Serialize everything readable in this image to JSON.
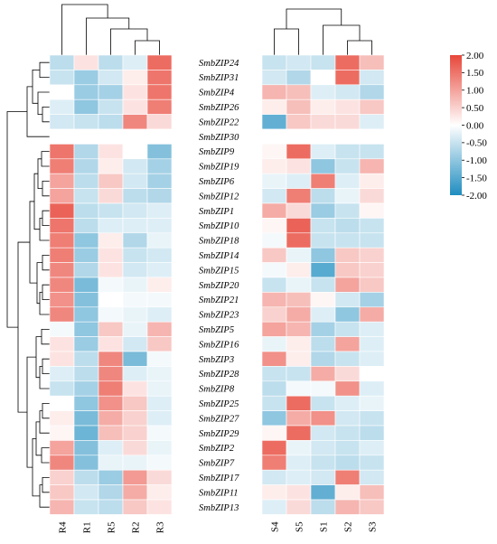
{
  "chart_data": {
    "type": "heatmap",
    "title": "",
    "rows": [
      "SmbZIP24",
      "SmbZIP31",
      "SmbZIP4",
      "SmbZIP26",
      "SmbZIP22",
      "SmbZIP30",
      "SmbZIP9",
      "SmbZIP19",
      "SmbZIP6",
      "SmbZIP12",
      "SmbZIP1",
      "SmbZIP10",
      "SmbZIP18",
      "SmbZIP14",
      "SmbZIP15",
      "SmbZIP20",
      "SmbZIP21",
      "SmbZIP23",
      "SmbZIP5",
      "SmbZIP16",
      "SmbZIP3",
      "SmbZIP28",
      "SmbZIP8",
      "SmbZIP25",
      "SmbZIP27",
      "SmbZIP29",
      "SmbZIP2",
      "SmbZIP7",
      "SmbZIP17",
      "SmbZIP11",
      "SmbZIP13"
    ],
    "panels": [
      {
        "columns": [
          "R4",
          "R1",
          "R5",
          "R2",
          "R3"
        ],
        "values": [
          [
            -0.6,
            0.3,
            -0.6,
            -0.3,
            1.6
          ],
          [
            -0.5,
            -0.9,
            -0.4,
            0.2,
            1.5
          ],
          [
            0.0,
            -0.9,
            -0.8,
            0.3,
            1.5
          ],
          [
            -0.3,
            -1.0,
            -0.5,
            0.3,
            1.4
          ],
          [
            -0.4,
            -0.5,
            -0.6,
            1.3,
            0.4
          ],
          [
            0.0,
            0.0,
            0.0,
            0.0,
            0.0
          ],
          [
            1.5,
            -0.7,
            0.3,
            0.0,
            -1.1
          ],
          [
            1.4,
            -0.7,
            0.2,
            -0.4,
            -0.8
          ],
          [
            1.0,
            -0.6,
            0.6,
            -0.4,
            -0.8
          ],
          [
            1.0,
            -0.5,
            0.4,
            -0.6,
            -0.7
          ],
          [
            1.7,
            -0.6,
            -0.5,
            -0.4,
            -0.3
          ],
          [
            1.5,
            -0.6,
            -0.3,
            -0.3,
            -0.3
          ],
          [
            1.4,
            -1.0,
            0.2,
            -0.7,
            -0.2
          ],
          [
            1.4,
            -0.9,
            0.3,
            -0.5,
            -0.4
          ],
          [
            1.3,
            -0.7,
            0.3,
            -0.4,
            -0.3
          ],
          [
            1.3,
            -1.2,
            -0.1,
            -0.2,
            0.2
          ],
          [
            1.2,
            -1.1,
            0.0,
            -0.1,
            -0.1
          ],
          [
            1.3,
            -1.0,
            -0.1,
            -0.2,
            -0.3
          ],
          [
            -0.1,
            -1.0,
            0.6,
            -0.2,
            0.8
          ],
          [
            0.3,
            -0.9,
            0.3,
            -0.4,
            0.6
          ],
          [
            0.3,
            -0.6,
            1.3,
            -1.2,
            -0.1
          ],
          [
            -0.3,
            -0.6,
            1.3,
            -0.3,
            -0.2
          ],
          [
            -0.5,
            -0.8,
            1.4,
            0.3,
            -0.2
          ],
          [
            0.0,
            -1.0,
            1.2,
            0.6,
            -0.3
          ],
          [
            0.2,
            -1.2,
            0.9,
            0.5,
            -0.3
          ],
          [
            0.1,
            -1.3,
            0.7,
            0.5,
            -0.1
          ],
          [
            1.0,
            -1.1,
            -0.3,
            0.4,
            -0.2
          ],
          [
            1.3,
            -1.1,
            -0.2,
            -0.2,
            -0.1
          ],
          [
            0.5,
            -0.6,
            -0.9,
            1.1,
            0.4
          ],
          [
            0.6,
            -0.4,
            -0.7,
            0.9,
            0.2
          ],
          [
            0.8,
            -0.5,
            -0.6,
            0.6,
            0.3
          ]
        ]
      },
      {
        "columns": [
          "S4",
          "S5",
          "S1",
          "S2",
          "S3"
        ],
        "values": [
          [
            -0.5,
            -0.4,
            -0.5,
            1.6,
            0.7
          ],
          [
            -0.4,
            -0.7,
            0.0,
            1.6,
            -0.4
          ],
          [
            0.8,
            0.7,
            -0.3,
            -0.4,
            -0.7
          ],
          [
            0.2,
            0.7,
            0.2,
            0.3,
            0.6
          ],
          [
            -1.4,
            0.6,
            0.4,
            0.4,
            -0.3
          ],
          [
            0.0,
            0.0,
            0.0,
            0.0,
            0.0
          ],
          [
            0.1,
            1.6,
            -0.3,
            -0.5,
            -0.5
          ],
          [
            0.2,
            0.3,
            -1.0,
            -0.5,
            0.8
          ],
          [
            -0.2,
            -0.3,
            1.4,
            -0.3,
            0.2
          ],
          [
            -0.4,
            1.4,
            -0.6,
            -0.2,
            0.4
          ],
          [
            0.9,
            0.4,
            -0.9,
            -0.5,
            0.1
          ],
          [
            0.1,
            1.7,
            -0.5,
            -0.6,
            -0.5
          ],
          [
            -0.1,
            1.6,
            -0.5,
            -0.5,
            -0.5
          ],
          [
            0.6,
            -0.2,
            -1.0,
            0.6,
            0.5
          ],
          [
            -0.1,
            0.2,
            -1.5,
            0.6,
            0.5
          ],
          [
            -0.5,
            -0.2,
            -0.5,
            1.0,
            0.6
          ],
          [
            0.8,
            0.7,
            0.1,
            -0.4,
            -0.8
          ],
          [
            0.5,
            0.9,
            -0.3,
            -1.0,
            0.9
          ],
          [
            1.0,
            0.8,
            -0.8,
            -0.5,
            -0.3
          ],
          [
            -0.2,
            0.2,
            -0.6,
            1.0,
            -0.3
          ],
          [
            1.2,
            0.2,
            -0.7,
            -0.5,
            -0.3
          ],
          [
            -0.5,
            -0.5,
            0.9,
            0.4,
            0.0
          ],
          [
            -0.6,
            -0.1,
            -0.1,
            1.2,
            -0.3
          ],
          [
            -0.5,
            1.6,
            -0.5,
            -0.3,
            -0.2
          ],
          [
            -1.0,
            0.9,
            1.2,
            -0.4,
            -0.5
          ],
          [
            0.1,
            1.6,
            -0.4,
            -0.5,
            -0.6
          ],
          [
            1.6,
            -0.2,
            -0.4,
            -0.5,
            -0.3
          ],
          [
            1.4,
            -0.3,
            -0.5,
            -0.6,
            -0.5
          ],
          [
            -0.4,
            -0.3,
            -0.4,
            1.4,
            -0.4
          ],
          [
            0.2,
            0.3,
            -1.4,
            0.2,
            0.7
          ],
          [
            -0.3,
            0.4,
            -0.6,
            0.8,
            0.6
          ]
        ]
      }
    ],
    "colorbar": {
      "range": [
        -2.0,
        2.0
      ],
      "ticks": [
        "2.00",
        "1.50",
        "1.00",
        "0.50",
        "0.00",
        "-0.50",
        "-1.00",
        "-1.50",
        "-2.00"
      ],
      "low_color": "#1f8dc0",
      "mid_color": "#ffffff",
      "high_color": "#e8473a"
    }
  }
}
